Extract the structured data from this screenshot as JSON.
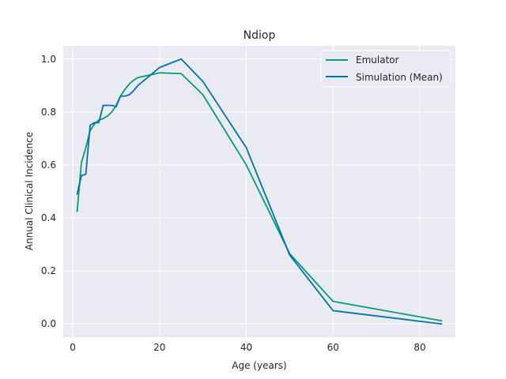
{
  "chart_data": {
    "type": "line",
    "title": "Ndiop",
    "xlabel": "Age (years)",
    "ylabel": "Annual Clinical Incidence",
    "xlim": [
      -2.2,
      88.2
    ],
    "ylim": [
      -0.05,
      1.05
    ],
    "xticks": [
      0,
      20,
      40,
      60,
      80
    ],
    "yticks": [
      0.0,
      0.2,
      0.4,
      0.6,
      0.8,
      1.0
    ],
    "grid": true,
    "legend_position": "top-right",
    "colors": {
      "background": "#eaeaf2",
      "grid": "#ffffff",
      "text": "#262626"
    },
    "series": [
      {
        "name": "Emulator",
        "color": "#009e73",
        "x": [
          1,
          2,
          3,
          4,
          5,
          6,
          7,
          8,
          9,
          10,
          11,
          12,
          13,
          14,
          15,
          20,
          25,
          30,
          40,
          50,
          60,
          85
        ],
        "y": [
          0.425,
          0.61,
          0.665,
          0.73,
          0.755,
          0.77,
          0.775,
          0.785,
          0.8,
          0.825,
          0.86,
          0.885,
          0.905,
          0.92,
          0.93,
          0.948,
          0.945,
          0.865,
          0.6,
          0.265,
          0.085,
          0.012
        ]
      },
      {
        "name": "Simulation (Mean)",
        "color": "#0072b2",
        "x": [
          1,
          2,
          3,
          4,
          5,
          6,
          7,
          8,
          9,
          10,
          11,
          12,
          13,
          14,
          15,
          20,
          25,
          30,
          40,
          50,
          60,
          85
        ],
        "y": [
          0.49,
          0.56,
          0.565,
          0.75,
          0.76,
          0.76,
          0.825,
          0.825,
          0.825,
          0.82,
          0.86,
          0.86,
          0.865,
          0.88,
          0.9,
          0.968,
          1.0,
          0.915,
          0.665,
          0.26,
          0.05,
          0.0
        ]
      }
    ]
  }
}
